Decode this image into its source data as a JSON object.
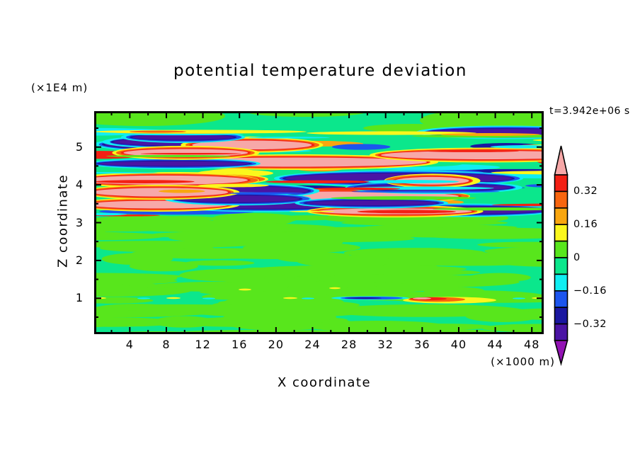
{
  "header": {
    "title": "potential temperature deviation",
    "y_axis_unit": "(×1E4 m)",
    "time_stamp": "t=3.942e+06 s"
  },
  "x_axis": {
    "label": "X coordinate",
    "unit": "(×1000 m)",
    "ticks": [
      "4",
      "8",
      "12",
      "16",
      "20",
      "24",
      "28",
      "32",
      "36",
      "40",
      "44",
      "48"
    ]
  },
  "y_axis": {
    "label": "Z coordinate",
    "ticks": [
      "5",
      "4",
      "3",
      "2",
      "1"
    ]
  },
  "colorbar": {
    "labels": [
      "0.32",
      "0.16",
      "0",
      "−0.16",
      "−0.32"
    ]
  },
  "chart_data": {
    "type": "heatmap",
    "title": "potential temperature deviation",
    "xlabel": "X coordinate",
    "x_unit": "(×1000 m)",
    "ylabel": "Z coordinate",
    "y_unit": "(×1E4 m)",
    "time_label": "t=3.942e+06 s",
    "x_ticks": [
      4,
      8,
      12,
      16,
      20,
      24,
      28,
      32,
      36,
      40,
      44,
      48
    ],
    "x_minor_step": 2,
    "y_ticks": [
      5,
      4,
      3,
      2,
      1
    ],
    "y_minor_step": 0.5,
    "xlim": [
      0.1,
      49.3
    ],
    "ylim": [
      0.05,
      5.95
    ],
    "grid": false,
    "legend_position": "right-colorbar",
    "contour_interval": 0.08,
    "labeled_levels": [
      0.32,
      0.16,
      0,
      -0.16,
      -0.32
    ],
    "colorbar_segments_top_to_bottom": [
      "#F32014",
      "#F8650E",
      "#F9A60F",
      "#FBF71C",
      "#58E61C",
      "#0BE78C",
      "#10EEF2",
      "#1C55EE",
      "#1A17A0",
      "#4A14A4"
    ],
    "colorbar_arrow_top": "#F7A8A8",
    "colorbar_arrow_bottom": "#9212B3",
    "palette": {
      "pink": "#F7A8A8",
      "red": "#F32014",
      "orangered": "#F8650E",
      "orange": "#F9A60F",
      "yellow": "#FBF71C",
      "chartreuse": "#58E61C",
      "spring": "#0BE78C",
      "cyan": "#10EEF2",
      "blue": "#1C55EE",
      "navy": "#1A17A0",
      "indigo": "#4A14A4",
      "purple": "#9212B3"
    },
    "field_summary": "Turbulent wave band with |deviation| > 0.4 between z≈3.3 and z≈5.3; weak ±0.08 horizontal streaks elsewhere; small ±0.3 localized features near z≈1.",
    "texture": {
      "seed": 11,
      "lower_blobs": 120,
      "band": {
        "y0": 28,
        "y1": 150,
        "thin": 46,
        "stacks": 14,
        "accents": 28
      }
    }
  }
}
